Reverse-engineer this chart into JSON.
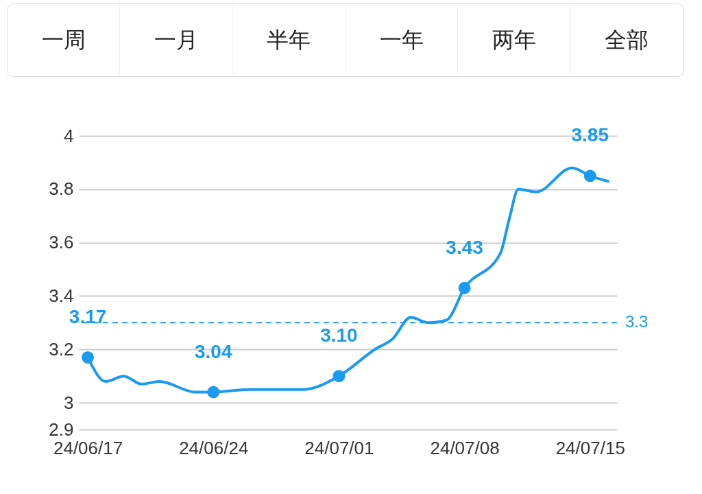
{
  "chart_data": {
    "type": "line",
    "annotations": [
      "一周",
      "一月",
      "半年",
      "一年",
      "两年",
      "全部"
    ],
    "xlim": [
      "--06-16T12:00",
      "--07-16T12:00"
    ],
    "xticks": [
      {
        "value": "--06-17",
        "label": "24/06/17"
      },
      {
        "value": "--06-24",
        "label": "24/06/24"
      },
      {
        "value": "--07-01",
        "label": "24/07/01"
      },
      {
        "value": "--07-08",
        "label": "24/07/08"
      },
      {
        "value": "--07-15",
        "label": "24/07/15"
      }
    ],
    "ylim": [
      2.9,
      4
    ],
    "yticks": [
      2.9,
      3,
      3.2,
      3.4,
      3.6,
      3.8,
      4
    ],
    "grid": "y",
    "ref_lines": [
      {
        "axis": "y",
        "value": 3.3,
        "label": "3.3",
        "color": "#1a9af0",
        "line_style": "dashed"
      }
    ],
    "series": [
      {
        "color": "#1a9af0",
        "marker": "none",
        "x": [
          "--06-17",
          "--06-18",
          "--06-19",
          "--06-20",
          "--06-21",
          "--06-23",
          "--06-24",
          "--06-26",
          "--06-29",
          "--07-01",
          "--07-03",
          "--07-04",
          "--07-05",
          "--07-06",
          "--07-07",
          "--07-08",
          "--07-10",
          "--07-10T12:00",
          "--07-11",
          "--07-12",
          "--07-14",
          "--07-15",
          "--07-16"
        ],
        "values": [
          3.17,
          3.08,
          3.1,
          3.07,
          3.08,
          3.04,
          3.04,
          3.05,
          3.05,
          3.1,
          3.2,
          3.24,
          3.32,
          3.3,
          3.31,
          3.43,
          3.56,
          3.69,
          3.8,
          3.79,
          3.88,
          3.85,
          3.83
        ]
      },
      {
        "type": "scatter",
        "color": "#1a9af0",
        "marker": "circle",
        "x": [
          "--06-17",
          "--06-24",
          "--07-01",
          "--07-08",
          "--07-15"
        ],
        "values": [
          3.17,
          3.04,
          3.1,
          3.43,
          3.85
        ],
        "value_labels": [
          "3.17",
          "3.04",
          "3.10",
          "3.43",
          "3.85"
        ]
      }
    ]
  }
}
